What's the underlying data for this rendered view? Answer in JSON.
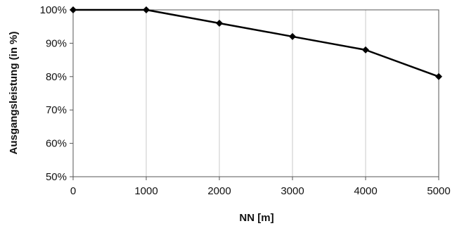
{
  "chart_data": {
    "type": "line",
    "title": "",
    "xlabel": "NN [m]",
    "ylabel": "Ausgangsleistung (in %)",
    "x": [
      0,
      1000,
      2000,
      3000,
      4000,
      5000
    ],
    "series": [
      {
        "values": [
          100,
          100,
          96,
          92,
          88,
          80
        ]
      }
    ],
    "xlim": [
      0,
      5000
    ],
    "ylim": [
      50,
      100
    ],
    "x_ticks": [
      "0",
      "1000",
      "2000",
      "3000",
      "4000",
      "5000"
    ],
    "y_ticks": [
      "50%",
      "60%",
      "70%",
      "80%",
      "90%",
      "100%"
    ],
    "grid": {
      "vertical": true,
      "horizontal": false
    },
    "marker": "diamond",
    "line_color": "#000000",
    "grid_color": "#c8c8c8",
    "legend": "none"
  }
}
